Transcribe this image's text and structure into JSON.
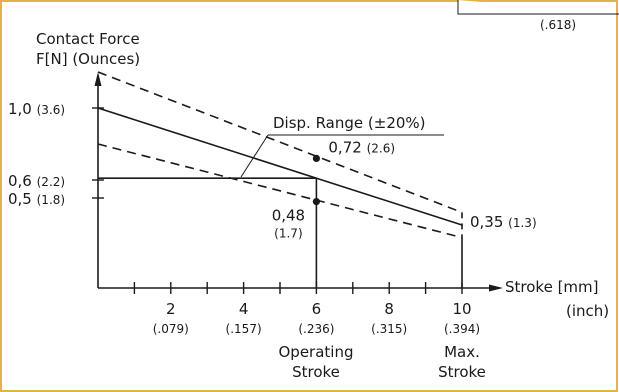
{
  "frame_color": "#e3b34a",
  "corner_label": "(.618)",
  "chart_data": {
    "type": "line",
    "y_title_line1": "Contact Force",
    "y_title_line2": "F[N] (Ounces)",
    "x_title": "Stroke [mm]",
    "x_unit": "(inch)",
    "xlim": [
      0,
      10
    ],
    "ylim": [
      0,
      1.2
    ],
    "x_ticks": [
      {
        "mm": 2,
        "mm_label": "2",
        "inch_label": "(.079)"
      },
      {
        "mm": 4,
        "mm_label": "4",
        "inch_label": "(.157)"
      },
      {
        "mm": 6,
        "mm_label": "6",
        "inch_label": "(.236)"
      },
      {
        "mm": 8,
        "mm_label": "8",
        "inch_label": "(.315)"
      },
      {
        "mm": 10,
        "mm_label": "10",
        "inch_label": "(.394)"
      }
    ],
    "y_labels": [
      {
        "value": 1.0,
        "main": "1,0",
        "sub": "(3.6)"
      },
      {
        "value": 0.6,
        "main": "0,6",
        "sub": "(2.2)"
      },
      {
        "value": 0.5,
        "main": "0,5",
        "sub": "(1.8)"
      }
    ],
    "series": [
      {
        "role": "nominal",
        "style": "solid",
        "x": [
          0,
          10
        ],
        "y": [
          1.0,
          0.35
        ]
      },
      {
        "role": "upper",
        "style": "dashed",
        "x": [
          0,
          10
        ],
        "y": [
          1.2,
          0.42
        ]
      },
      {
        "role": "lower",
        "style": "dashed",
        "x": [
          0,
          10
        ],
        "y": [
          0.8,
          0.28
        ]
      }
    ],
    "points": [
      {
        "x": 6,
        "y": 0.72,
        "main": "0,72",
        "sub": "(2.6)"
      },
      {
        "x": 6,
        "y": 0.48,
        "main": "0,48",
        "sub": "(1.7)"
      }
    ],
    "end_label": {
      "x": 10,
      "y": 0.35,
      "main": "0,35",
      "sub": "(1.3)"
    },
    "operating_stroke": {
      "x": 6,
      "y": 0.61,
      "label_line1": "Operating",
      "label_line2": "Stroke"
    },
    "max_stroke": {
      "x": 10,
      "label_line1": "Max.",
      "label_line2": "Stroke"
    },
    "annotation": "Disp. Range (±20%)"
  }
}
